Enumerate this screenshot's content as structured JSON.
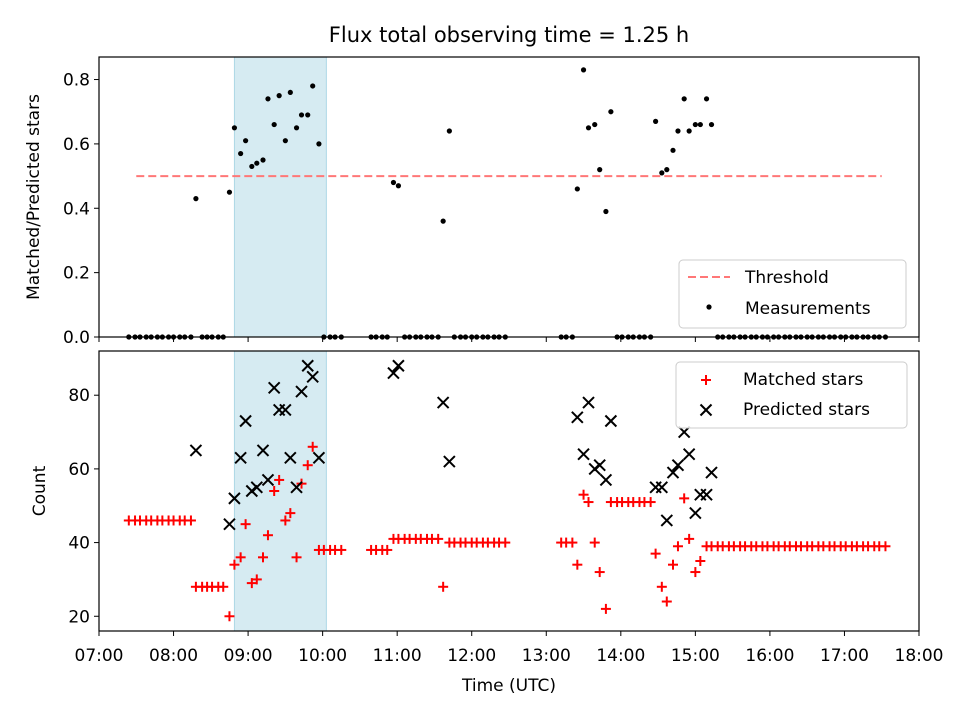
{
  "chart_data": [
    {
      "type": "scatter",
      "title": "Flux total observing time = 1.25 h",
      "xlabel": "",
      "ylabel": "Matched/Predicted stars",
      "xlim": [
        "07:00",
        "18:00"
      ],
      "ylim": [
        0,
        0.87
      ],
      "yticks": [
        "0.0",
        "0.2",
        "0.4",
        "0.6",
        "0.8"
      ],
      "highlight_span": {
        "start": "08:49",
        "end": "10:03",
        "color": "#add8e6"
      },
      "threshold": {
        "name": "Threshold",
        "value": 0.5,
        "x_start": "07:30",
        "x_end": "17:30",
        "color": "#ff7777"
      },
      "legend": {
        "position": "lower-right",
        "threshold_label": "Threshold",
        "measurements_label": "Measurements"
      },
      "measurements": [
        [
          "07:24",
          0
        ],
        [
          "07:29",
          0
        ],
        [
          "07:33",
          0
        ],
        [
          "07:38",
          0
        ],
        [
          "07:42",
          0
        ],
        [
          "07:47",
          0
        ],
        [
          "07:51",
          0
        ],
        [
          "07:56",
          0
        ],
        [
          "08:00",
          0
        ],
        [
          "08:05",
          0
        ],
        [
          "08:09",
          0
        ],
        [
          "08:14",
          0
        ],
        [
          "08:18",
          0.43
        ],
        [
          "08:23",
          0
        ],
        [
          "08:27",
          0
        ],
        [
          "08:31",
          0
        ],
        [
          "08:36",
          0
        ],
        [
          "08:40",
          0
        ],
        [
          "08:45",
          0.45
        ],
        [
          "08:49",
          0.65
        ],
        [
          "08:54",
          0.57
        ],
        [
          "08:58",
          0.61
        ],
        [
          "09:03",
          0.53
        ],
        [
          "09:07",
          0.54
        ],
        [
          "09:12",
          0.55
        ],
        [
          "09:16",
          0.74
        ],
        [
          "09:21",
          0.66
        ],
        [
          "09:25",
          0.75
        ],
        [
          "09:30",
          0.61
        ],
        [
          "09:34",
          0.76
        ],
        [
          "09:39",
          0.65
        ],
        [
          "09:43",
          0.69
        ],
        [
          "09:48",
          0.69
        ],
        [
          "09:52",
          0.78
        ],
        [
          "09:57",
          0.6
        ],
        [
          "10:01",
          0
        ],
        [
          "10:06",
          0
        ],
        [
          "10:10",
          0
        ],
        [
          "10:15",
          0
        ],
        [
          "10:39",
          0
        ],
        [
          "10:43",
          0
        ],
        [
          "10:48",
          0
        ],
        [
          "10:52",
          0
        ],
        [
          "10:57",
          0.48
        ],
        [
          "11:01",
          0.47
        ],
        [
          "11:06",
          0
        ],
        [
          "11:10",
          0
        ],
        [
          "11:15",
          0
        ],
        [
          "11:19",
          0
        ],
        [
          "11:24",
          0
        ],
        [
          "11:28",
          0
        ],
        [
          "11:33",
          0
        ],
        [
          "11:37",
          0.36
        ],
        [
          "11:42",
          0.64
        ],
        [
          "11:46",
          0
        ],
        [
          "11:51",
          0
        ],
        [
          "11:55",
          0
        ],
        [
          "12:00",
          0
        ],
        [
          "12:04",
          0
        ],
        [
          "12:09",
          0
        ],
        [
          "12:13",
          0
        ],
        [
          "12:18",
          0
        ],
        [
          "12:22",
          0
        ],
        [
          "12:27",
          0
        ],
        [
          "13:12",
          0
        ],
        [
          "13:16",
          0
        ],
        [
          "13:21",
          0
        ],
        [
          "13:25",
          0.46
        ],
        [
          "13:30",
          0.83
        ],
        [
          "13:34",
          0.65
        ],
        [
          "13:39",
          0.66
        ],
        [
          "13:43",
          0.52
        ],
        [
          "13:48",
          0.39
        ],
        [
          "13:52",
          0.7
        ],
        [
          "13:57",
          0
        ],
        [
          "14:01",
          0
        ],
        [
          "14:06",
          0
        ],
        [
          "14:10",
          0
        ],
        [
          "14:15",
          0
        ],
        [
          "14:19",
          0
        ],
        [
          "14:24",
          0
        ],
        [
          "14:28",
          0.67
        ],
        [
          "14:33",
          0.51
        ],
        [
          "14:37",
          0.52
        ],
        [
          "14:42",
          0.58
        ],
        [
          "14:46",
          0.64
        ],
        [
          "14:51",
          0.74
        ],
        [
          "14:55",
          0.64
        ],
        [
          "15:00",
          0.66
        ],
        [
          "15:04",
          0.66
        ],
        [
          "15:09",
          0.74
        ],
        [
          "15:13",
          0.66
        ],
        [
          "15:18",
          0
        ],
        [
          "15:22",
          0
        ],
        [
          "15:27",
          0
        ],
        [
          "15:31",
          0
        ],
        [
          "15:36",
          0
        ],
        [
          "15:40",
          0
        ],
        [
          "15:45",
          0
        ],
        [
          "15:49",
          0
        ],
        [
          "15:54",
          0
        ],
        [
          "15:58",
          0
        ],
        [
          "16:03",
          0
        ],
        [
          "16:07",
          0
        ],
        [
          "16:12",
          0
        ],
        [
          "16:16",
          0
        ],
        [
          "16:21",
          0
        ],
        [
          "16:25",
          0
        ],
        [
          "16:30",
          0
        ],
        [
          "16:34",
          0
        ],
        [
          "16:39",
          0
        ],
        [
          "16:43",
          0
        ],
        [
          "16:48",
          0
        ],
        [
          "16:52",
          0
        ],
        [
          "16:57",
          0
        ],
        [
          "17:01",
          0
        ],
        [
          "17:06",
          0
        ],
        [
          "17:10",
          0
        ],
        [
          "17:15",
          0
        ],
        [
          "17:19",
          0
        ],
        [
          "17:24",
          0
        ],
        [
          "17:28",
          0
        ],
        [
          "17:33",
          0
        ]
      ]
    },
    {
      "type": "scatter",
      "xlabel": "Time (UTC)",
      "ylabel": "Count",
      "xlim": [
        "07:00",
        "18:00"
      ],
      "ylim": [
        16,
        92
      ],
      "yticks": [
        "20",
        "40",
        "60",
        "80"
      ],
      "xticks": [
        "07:00",
        "08:00",
        "09:00",
        "10:00",
        "11:00",
        "12:00",
        "13:00",
        "14:00",
        "15:00",
        "16:00",
        "17:00",
        "18:00"
      ],
      "highlight_span": {
        "start": "08:49",
        "end": "10:03",
        "color": "#add8e6"
      },
      "legend": {
        "position": "top-right"
      },
      "series": [
        {
          "name": "Matched stars",
          "marker": "plus",
          "color": "#ff0000",
          "points": [
            [
              "07:24",
              46
            ],
            [
              "07:29",
              46
            ],
            [
              "07:33",
              46
            ],
            [
              "07:38",
              46
            ],
            [
              "07:42",
              46
            ],
            [
              "07:47",
              46
            ],
            [
              "07:51",
              46
            ],
            [
              "07:56",
              46
            ],
            [
              "08:00",
              46
            ],
            [
              "08:05",
              46
            ],
            [
              "08:09",
              46
            ],
            [
              "08:14",
              46
            ],
            [
              "08:18",
              28
            ],
            [
              "08:23",
              28
            ],
            [
              "08:27",
              28
            ],
            [
              "08:31",
              28
            ],
            [
              "08:36",
              28
            ],
            [
              "08:40",
              28
            ],
            [
              "08:45",
              20
            ],
            [
              "08:49",
              34
            ],
            [
              "08:54",
              36
            ],
            [
              "08:58",
              45
            ],
            [
              "09:03",
              29
            ],
            [
              "09:07",
              30
            ],
            [
              "09:12",
              36
            ],
            [
              "09:16",
              42
            ],
            [
              "09:21",
              54
            ],
            [
              "09:25",
              57
            ],
            [
              "09:30",
              46
            ],
            [
              "09:34",
              48
            ],
            [
              "09:39",
              36
            ],
            [
              "09:43",
              56
            ],
            [
              "09:48",
              61
            ],
            [
              "09:52",
              66
            ],
            [
              "09:57",
              38
            ],
            [
              "10:01",
              38
            ],
            [
              "10:06",
              38
            ],
            [
              "10:10",
              38
            ],
            [
              "10:15",
              38
            ],
            [
              "10:39",
              38
            ],
            [
              "10:43",
              38
            ],
            [
              "10:48",
              38
            ],
            [
              "10:52",
              38
            ],
            [
              "10:57",
              41
            ],
            [
              "11:01",
              41
            ],
            [
              "11:06",
              41
            ],
            [
              "11:10",
              41
            ],
            [
              "11:15",
              41
            ],
            [
              "11:19",
              41
            ],
            [
              "11:24",
              41
            ],
            [
              "11:28",
              41
            ],
            [
              "11:33",
              41
            ],
            [
              "11:37",
              28
            ],
            [
              "11:42",
              40
            ],
            [
              "11:46",
              40
            ],
            [
              "11:51",
              40
            ],
            [
              "11:55",
              40
            ],
            [
              "12:00",
              40
            ],
            [
              "12:04",
              40
            ],
            [
              "12:09",
              40
            ],
            [
              "12:13",
              40
            ],
            [
              "12:18",
              40
            ],
            [
              "12:22",
              40
            ],
            [
              "12:27",
              40
            ],
            [
              "13:12",
              40
            ],
            [
              "13:16",
              40
            ],
            [
              "13:21",
              40
            ],
            [
              "13:25",
              34
            ],
            [
              "13:30",
              53
            ],
            [
              "13:34",
              51
            ],
            [
              "13:39",
              40
            ],
            [
              "13:43",
              32
            ],
            [
              "13:48",
              22
            ],
            [
              "13:52",
              51
            ],
            [
              "13:57",
              51
            ],
            [
              "14:01",
              51
            ],
            [
              "14:06",
              51
            ],
            [
              "14:10",
              51
            ],
            [
              "14:15",
              51
            ],
            [
              "14:19",
              51
            ],
            [
              "14:24",
              51
            ],
            [
              "14:28",
              37
            ],
            [
              "14:33",
              28
            ],
            [
              "14:37",
              24
            ],
            [
              "14:42",
              34
            ],
            [
              "14:46",
              39
            ],
            [
              "14:51",
              52
            ],
            [
              "14:55",
              41
            ],
            [
              "15:00",
              32
            ],
            [
              "15:04",
              35
            ],
            [
              "15:09",
              39
            ],
            [
              "15:13",
              39
            ],
            [
              "15:18",
              39
            ],
            [
              "15:22",
              39
            ],
            [
              "15:27",
              39
            ],
            [
              "15:31",
              39
            ],
            [
              "15:36",
              39
            ],
            [
              "15:40",
              39
            ],
            [
              "15:45",
              39
            ],
            [
              "15:49",
              39
            ],
            [
              "15:54",
              39
            ],
            [
              "15:58",
              39
            ],
            [
              "16:03",
              39
            ],
            [
              "16:07",
              39
            ],
            [
              "16:12",
              39
            ],
            [
              "16:16",
              39
            ],
            [
              "16:21",
              39
            ],
            [
              "16:25",
              39
            ],
            [
              "16:30",
              39
            ],
            [
              "16:34",
              39
            ],
            [
              "16:39",
              39
            ],
            [
              "16:43",
              39
            ],
            [
              "16:48",
              39
            ],
            [
              "16:52",
              39
            ],
            [
              "16:57",
              39
            ],
            [
              "17:01",
              39
            ],
            [
              "17:06",
              39
            ],
            [
              "17:10",
              39
            ],
            [
              "17:15",
              39
            ],
            [
              "17:19",
              39
            ],
            [
              "17:24",
              39
            ],
            [
              "17:28",
              39
            ],
            [
              "17:33",
              39
            ]
          ]
        },
        {
          "name": "Predicted stars",
          "marker": "x",
          "color": "#000000",
          "points": [
            [
              "08:18",
              65
            ],
            [
              "08:45",
              45
            ],
            [
              "08:49",
              52
            ],
            [
              "08:54",
              63
            ],
            [
              "08:58",
              73
            ],
            [
              "09:03",
              54
            ],
            [
              "09:07",
              55
            ],
            [
              "09:12",
              65
            ],
            [
              "09:16",
              57
            ],
            [
              "09:21",
              82
            ],
            [
              "09:25",
              76
            ],
            [
              "09:30",
              76
            ],
            [
              "09:34",
              63
            ],
            [
              "09:39",
              55
            ],
            [
              "09:43",
              81
            ],
            [
              "09:48",
              88
            ],
            [
              "09:52",
              85
            ],
            [
              "09:57",
              63
            ],
            [
              "10:57",
              86
            ],
            [
              "11:01",
              88
            ],
            [
              "11:37",
              78
            ],
            [
              "11:42",
              62
            ],
            [
              "13:25",
              74
            ],
            [
              "13:30",
              64
            ],
            [
              "13:34",
              78
            ],
            [
              "13:39",
              60
            ],
            [
              "13:43",
              61
            ],
            [
              "13:48",
              57
            ],
            [
              "13:52",
              73
            ],
            [
              "14:28",
              55
            ],
            [
              "14:33",
              55
            ],
            [
              "14:37",
              46
            ],
            [
              "14:42",
              59
            ],
            [
              "14:46",
              61
            ],
            [
              "14:51",
              70
            ],
            [
              "14:55",
              64
            ],
            [
              "15:00",
              48
            ],
            [
              "15:04",
              53
            ],
            [
              "15:09",
              53
            ],
            [
              "15:13",
              59
            ]
          ]
        }
      ]
    }
  ]
}
